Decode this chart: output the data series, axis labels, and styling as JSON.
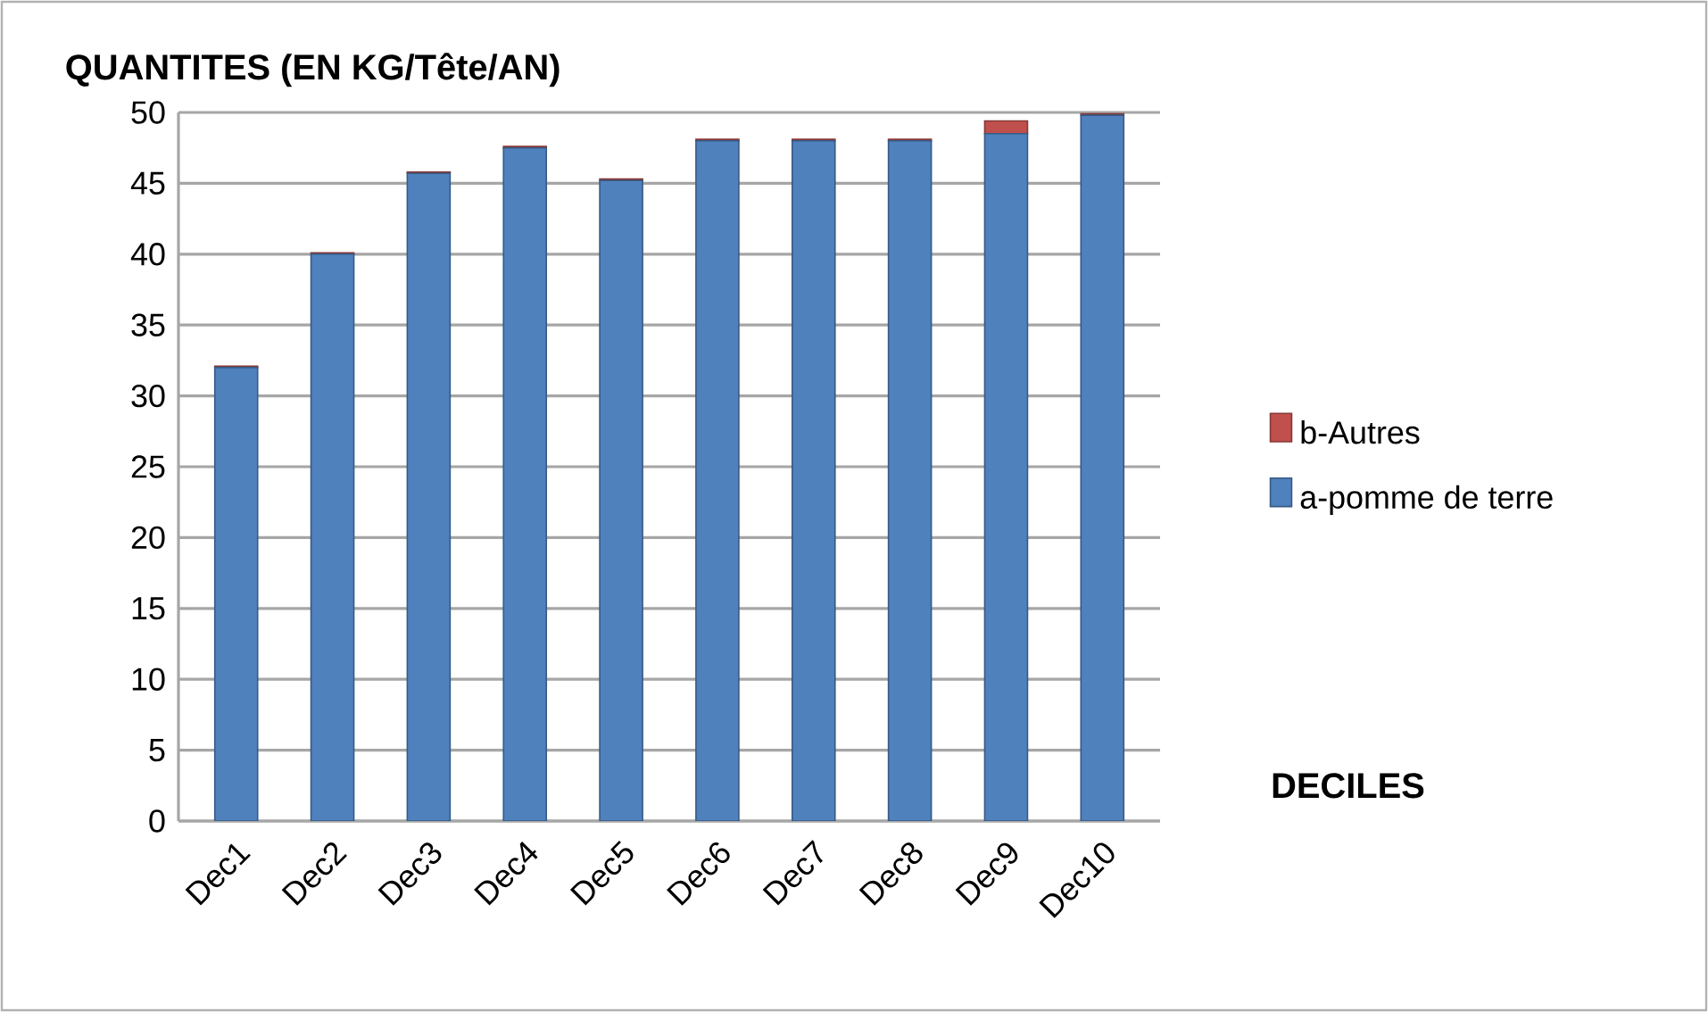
{
  "chart_data": {
    "type": "bar",
    "title": "QUANTITES (EN KG/Tête/AN)",
    "xlabel": "DECILES",
    "categories": [
      "Dec1",
      "Dec2",
      "Dec3",
      "Dec4",
      "Dec5",
      "Dec6",
      "Dec7",
      "Dec8",
      "Dec9",
      "Dec10"
    ],
    "series": [
      {
        "name": "a-pomme de terre",
        "color": "#4f81bd",
        "values": [
          32,
          40,
          45.7,
          47.5,
          45.2,
          48,
          48,
          48,
          48.5,
          49.8
        ]
      },
      {
        "name": "b-Autres",
        "color": "#c0504d",
        "values": [
          0.1,
          0.1,
          0.1,
          0.1,
          0.1,
          0.1,
          0.1,
          0.1,
          0.9,
          0.1
        ]
      }
    ],
    "stacked": true,
    "ylim": [
      0,
      50
    ],
    "yticks": [
      0,
      5,
      10,
      15,
      20,
      25,
      30,
      35,
      40,
      45,
      50
    ],
    "grid": "y",
    "legend": "right"
  }
}
